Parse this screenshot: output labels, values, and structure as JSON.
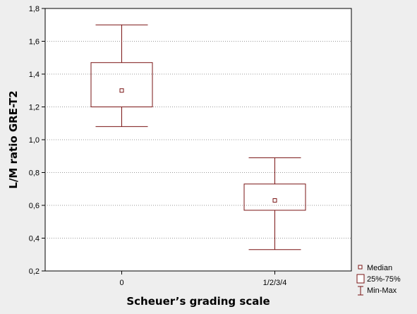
{
  "chart_data": {
    "type": "box",
    "xlabel": "Scheuer’s grading scale",
    "ylabel": "L/M ratio GRE-T2",
    "ylim": [
      0.2,
      1.8
    ],
    "yticks": [
      "0,2",
      "0,4",
      "0,6",
      "0,8",
      "1,0",
      "1,2",
      "1,4",
      "1,6",
      "1,8"
    ],
    "ytick_values": [
      0.2,
      0.4,
      0.6,
      0.8,
      1.0,
      1.2,
      1.4,
      1.6,
      1.8
    ],
    "grid": true,
    "legend_position": "bottom-right",
    "legend": [
      "Median",
      "25%-75%",
      "Min-Max"
    ],
    "categories": [
      "0",
      "1/2/3/4"
    ],
    "boxes": [
      {
        "category": "0",
        "min": 1.08,
        "q1": 1.2,
        "median": 1.3,
        "q3": 1.47,
        "max": 1.7
      },
      {
        "category": "1/2/3/4",
        "min": 0.33,
        "q1": 0.57,
        "median": 0.63,
        "q3": 0.73,
        "max": 0.89
      }
    ],
    "colors": {
      "box": "#7a1414",
      "background": "#eeeeee",
      "plot_background": "#ffffff",
      "grid": "#9a9a9a"
    }
  }
}
